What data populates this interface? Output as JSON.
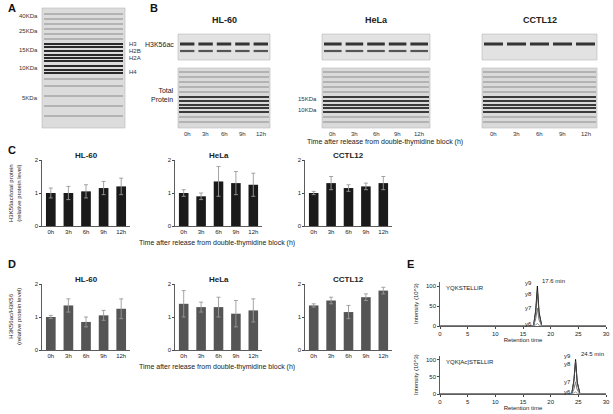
{
  "panel_labels": [
    "A",
    "B",
    "C",
    "D",
    "E"
  ],
  "gels": {
    "A": {
      "markers": [
        "40KDa",
        "25KDa",
        "15KDa",
        "10KDa",
        "5KDa"
      ],
      "bands": [
        "H3",
        "H2B",
        "H2A",
        "H4"
      ]
    },
    "B": {
      "row_labels": [
        "H3K56ac",
        "Total Protein"
      ],
      "markers": [
        "15KDa",
        "10KDa"
      ],
      "cell_lines": [
        "HL-60",
        "HeLa",
        "CCTL12"
      ],
      "lanes": [
        "0h",
        "3h",
        "6h",
        "9h",
        "12h"
      ],
      "x_label": "Time after release from double-thymidine block (h)"
    }
  },
  "chart_data": [
    {
      "type": "bar",
      "title": "HL-60",
      "y_label": [
        "H3K56ac/total protein",
        "(relative protein level)"
      ],
      "categories": [
        "0h",
        "3h",
        "6h",
        "9h",
        "12h"
      ],
      "values": [
        1,
        1,
        1.05,
        1.15,
        1.2
      ],
      "errors": [
        0.15,
        0.2,
        0.2,
        0.2,
        0.25
      ],
      "color": "#1a1a1a",
      "ylim": [
        0,
        2
      ],
      "yticks": [
        0,
        1,
        2
      ],
      "grid": false
    },
    {
      "type": "bar",
      "title": "HeLa",
      "x_label": "Time after release from double-thymidine block (h)",
      "categories": [
        "0h",
        "3h",
        "6h",
        "9h",
        "12h"
      ],
      "values": [
        1,
        0.9,
        1.35,
        1.3,
        1.25
      ],
      "errors": [
        0.1,
        0.1,
        0.45,
        0.35,
        0.35
      ],
      "color": "#1a1a1a",
      "ylim": [
        0,
        2
      ],
      "yticks": [
        0,
        1,
        2
      ],
      "grid": false
    },
    {
      "type": "bar",
      "title": "CCTL12",
      "categories": [
        "0h",
        "3h",
        "6h",
        "9h",
        "12h"
      ],
      "values": [
        1,
        1.3,
        1.15,
        1.2,
        1.3
      ],
      "errors": [
        0.05,
        0.2,
        0.1,
        0.1,
        0.2
      ],
      "color": "#1a1a1a",
      "ylim": [
        0,
        2
      ],
      "yticks": [
        0,
        1,
        2
      ],
      "grid": false
    },
    {
      "type": "bar",
      "title": "HL-60",
      "y_label": [
        "H3K56ac/H3K56",
        "(relative protein level)"
      ],
      "categories": [
        "0h",
        "3h",
        "6h",
        "9h",
        "12h"
      ],
      "values": [
        1,
        1.35,
        0.85,
        1.05,
        1.25
      ],
      "errors": [
        0.05,
        0.2,
        0.15,
        0.15,
        0.3
      ],
      "color": "#555555",
      "ylim": [
        0,
        2
      ],
      "yticks": [
        0,
        1,
        2
      ],
      "grid": false
    },
    {
      "type": "bar",
      "title": "HeLa",
      "x_label": "Time after release from double-thymidine block (h)",
      "categories": [
        "0h",
        "3h",
        "6h",
        "9h",
        "12h"
      ],
      "values": [
        1.4,
        1.3,
        1.3,
        1.1,
        1.2
      ],
      "errors": [
        0.4,
        0.15,
        0.3,
        0.4,
        0.35
      ],
      "color": "#555555",
      "ylim": [
        0,
        2
      ],
      "yticks": [
        0,
        1,
        2
      ],
      "grid": false
    },
    {
      "type": "bar",
      "title": "CCTL12",
      "categories": [
        "0h",
        "3h",
        "6h",
        "9h",
        "12h"
      ],
      "values": [
        1.35,
        1.5,
        1.15,
        1.6,
        1.8
      ],
      "errors": [
        0.05,
        0.1,
        0.2,
        0.1,
        0.1
      ],
      "color": "#555555",
      "ylim": [
        0,
        2
      ],
      "yticks": [
        0,
        1,
        2
      ],
      "grid": false
    },
    {
      "type": "line",
      "title": "YQKSTELLIR",
      "x_label": "Retention time",
      "y_label": "Intensity (10^3)",
      "xlim": [
        0,
        30
      ],
      "xticks": [
        0,
        5,
        10,
        15,
        20,
        25,
        30
      ],
      "ylim": [
        0,
        110
      ],
      "yticks": [
        0,
        50,
        100
      ],
      "grid": false,
      "annotations": [
        {
          "x": 17.6,
          "y": 100,
          "text": "17.6 min"
        }
      ],
      "series": [
        {
          "name": "y9",
          "color": "#111111",
          "x": [
            0,
            16.9,
            17.3,
            17.6,
            17.9,
            18.4,
            30
          ],
          "values": [
            0,
            0,
            40,
            100,
            35,
            0,
            0
          ]
        },
        {
          "name": "y8",
          "color": "#444444",
          "x": [
            0,
            16.9,
            17.3,
            17.6,
            17.9,
            18.4,
            30
          ],
          "values": [
            0,
            0,
            35,
            88,
            30,
            0,
            0
          ]
        },
        {
          "name": "y7",
          "color": "#777777",
          "x": [
            0,
            16.9,
            17.3,
            17.6,
            17.9,
            18.4,
            30
          ],
          "values": [
            0,
            0,
            18,
            45,
            15,
            0,
            0
          ]
        },
        {
          "name": "y6",
          "color": "#999999",
          "x": [
            0,
            16.9,
            17.3,
            17.6,
            17.9,
            18.4,
            30
          ],
          "values": [
            0,
            0,
            3,
            6,
            2,
            0,
            0
          ]
        }
      ]
    },
    {
      "type": "line",
      "title": "YQK[Ac]STELLIR",
      "x_label": "Retention time",
      "y_label": "Intensity (10^3)",
      "xlim": [
        0,
        30
      ],
      "xticks": [
        0,
        5,
        10,
        15,
        20,
        25,
        30
      ],
      "ylim": [
        0,
        110
      ],
      "yticks": [
        0,
        50,
        100
      ],
      "grid": false,
      "annotations": [
        {
          "x": 24.5,
          "y": 100,
          "text": "24.5 min"
        }
      ],
      "series": [
        {
          "name": "y9",
          "color": "#111111",
          "x": [
            0,
            23.8,
            24.2,
            24.5,
            24.8,
            25.3,
            30
          ],
          "values": [
            0,
            0,
            40,
            100,
            35,
            0,
            0
          ]
        },
        {
          "name": "y8",
          "color": "#444444",
          "x": [
            0,
            23.8,
            24.2,
            24.5,
            24.8,
            25.3,
            30
          ],
          "values": [
            0,
            0,
            38,
            95,
            32,
            0,
            0
          ]
        },
        {
          "name": "y7",
          "color": "#777777",
          "x": [
            0,
            23.8,
            24.2,
            24.5,
            24.8,
            25.3,
            30
          ],
          "values": [
            0,
            0,
            14,
            35,
            12,
            0,
            0
          ]
        },
        {
          "name": "y6",
          "color": "#999999",
          "x": [
            0,
            23.8,
            24.2,
            24.5,
            24.8,
            25.3,
            30
          ],
          "values": [
            0,
            0,
            3,
            6,
            2,
            0,
            0
          ]
        }
      ]
    }
  ]
}
